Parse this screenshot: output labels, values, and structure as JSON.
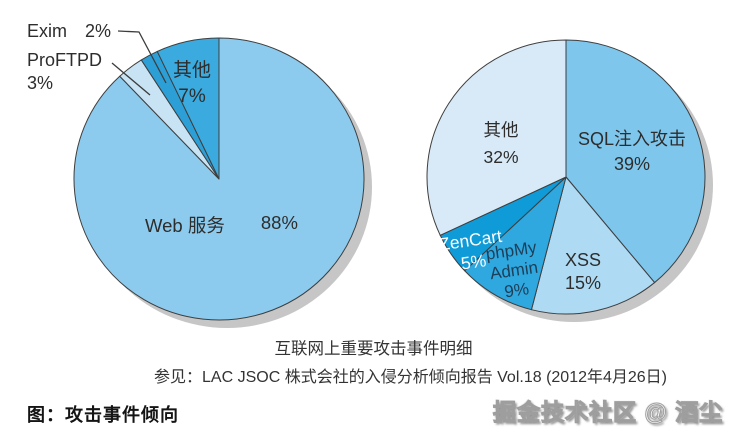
{
  "chart_data": [
    {
      "type": "pie",
      "position": "left",
      "start_angle": "12-oclock",
      "direction": "clockwise",
      "legend_position": "none",
      "slices": [
        {
          "label": "Web 服务",
          "percent": 88,
          "color": "#8DCBEE"
        },
        {
          "label": "ProFTPD",
          "percent": 3,
          "color": "#C8E3F4",
          "callout": true
        },
        {
          "label": "Exim",
          "percent": 2,
          "color": "#2D9FD7",
          "callout": true
        },
        {
          "label": "其他",
          "percent": 7,
          "color": "#3BAADF"
        }
      ]
    },
    {
      "type": "pie",
      "position": "right",
      "start_angle": "12-oclock",
      "direction": "clockwise",
      "legend_position": "none",
      "slices": [
        {
          "label": "SQL注入攻击",
          "percent": 39,
          "color": "#7FC6EC"
        },
        {
          "label": "XSS",
          "percent": 15,
          "color": "#AEDAF3"
        },
        {
          "label": "phpMyAdmin",
          "percent": 9,
          "color": "#2FA7DF",
          "label_lines": [
            "phpMy",
            "Admin"
          ]
        },
        {
          "label": "ZenCart",
          "percent": 5,
          "color": "#0F9BD8"
        },
        {
          "label": "其他",
          "percent": 32,
          "color": "#D8EAF7"
        }
      ]
    }
  ],
  "texts": {
    "caption": "互联网上重要攻击事件明细",
    "reference": "参见：LAC JSOC 株式会社的入侵分析倾向报告 Vol.18 (2012年4月26日)",
    "figure_title": "图：攻击事件倾向",
    "watermark": "掘金技术社区 @ 酒尘"
  },
  "style_colors": {
    "slice_outline": "#3E3E3E",
    "pie_shadow": "#C6C6C6",
    "leader_line": "#3C3C3C"
  }
}
